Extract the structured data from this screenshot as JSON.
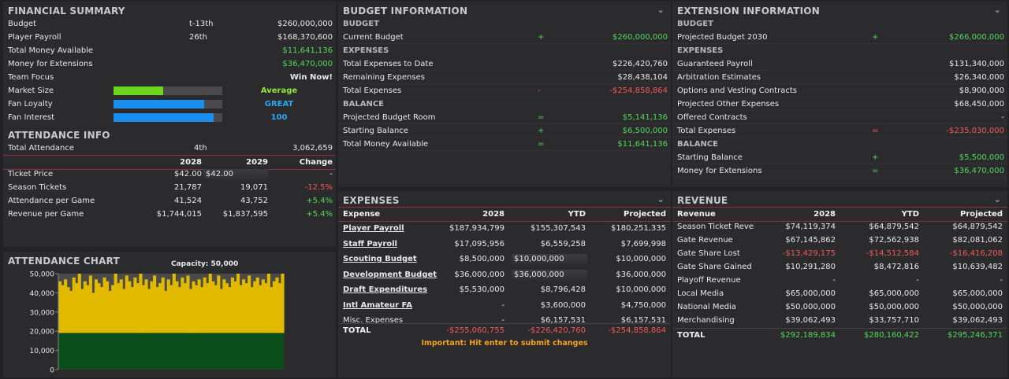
{
  "financial": {
    "title": "FINANCIAL SUMMARY",
    "rows": [
      {
        "label": "Budget",
        "mid": "t-13th",
        "value": "$260,000,000"
      },
      {
        "label": "Player Payroll",
        "mid": "26th",
        "value": "$168,370,600"
      },
      {
        "label": "Total Money Available",
        "mid": "",
        "value": "$11,641,136"
      },
      {
        "label": "Money for Extensions",
        "mid": "",
        "value": "$36,470,000"
      },
      {
        "label": "Team Focus",
        "mid": "",
        "value": "Win Now!"
      }
    ],
    "bars": [
      {
        "label": "Market Size",
        "value_text": "Average",
        "fraction": 0.46,
        "color": "#6cd61c"
      },
      {
        "label": "Fan Loyalty",
        "value_text": "GREAT",
        "fraction": 0.83,
        "color": "#1a8ff0"
      },
      {
        "label": "Fan Interest",
        "value_text": "100",
        "fraction": 0.92,
        "color": "#1a8ff0"
      }
    ]
  },
  "attendance": {
    "title": "ATTENDANCE INFO",
    "total_label": "Total Attendance",
    "total_rank": "4th",
    "total_value": "3,062,659",
    "col_2028": "2028",
    "col_2029": "2029",
    "col_change": "Change",
    "ticket_price": {
      "label": "Ticket Price",
      "v2028": "$42.00",
      "v2029": "$42.00",
      "change": "-"
    },
    "rows": [
      {
        "label": "Season Tickets",
        "v2028": "21,787",
        "v2029": "19,071",
        "change": "-12.5%"
      },
      {
        "label": "Attendance per Game",
        "v2028": "41,524",
        "v2029": "43,752",
        "change": "+5.4%"
      },
      {
        "label": "Revenue per Game",
        "v2028": "$1,744,015",
        "v2029": "$1,837,595",
        "change": "+5.4%"
      }
    ]
  },
  "chart": {
    "title": "ATTENDANCE CHART",
    "capacity_label": "Capacity: 50,000",
    "y_ticks": [
      "50,000",
      "40,000",
      "30,000",
      "20,000",
      "10,000",
      "0"
    ],
    "colors": {
      "season": "#0c4d1c",
      "extra": "#e1ba00",
      "empty": "#4a4a4a"
    }
  },
  "chart_data": {
    "type": "bar",
    "title": "ATTENDANCE CHART",
    "ylim": [
      0,
      50000
    ],
    "season_tickets": 19071,
    "capacity": 50000,
    "values": [
      46000,
      44000,
      47000,
      43000,
      41000,
      48000,
      45000,
      50000,
      42000,
      46000,
      44000,
      49000,
      40000,
      47000,
      45000,
      43000,
      48000,
      46000,
      41000,
      44000,
      50000,
      45000,
      47000,
      42000,
      49000,
      46000,
      43000,
      48000,
      45000,
      50000,
      44000,
      47000,
      42000,
      46000,
      49000,
      43000,
      45000,
      48000,
      41000,
      47000,
      44000,
      50000,
      46000,
      43000,
      48000,
      45000,
      49000,
      42000,
      46000,
      44000,
      47000,
      43000,
      48000,
      45000,
      50000,
      46000,
      44000,
      49000,
      42000,
      47000,
      45000,
      43000,
      48000,
      46000,
      50000,
      44000,
      47000,
      45000,
      49000,
      43000,
      46000,
      48000,
      44000,
      47000,
      45000,
      50000,
      43000,
      46000,
      48000,
      45000,
      50000
    ]
  },
  "budget": {
    "title": "BUDGET INFORMATION",
    "sections": [
      {
        "label": "BUDGET",
        "rows": [
          {
            "label": "Current Budget",
            "op": "+",
            "value": "$260,000,000",
            "color": "green"
          }
        ]
      },
      {
        "label": "EXPENSES",
        "rows": [
          {
            "label": "Total Expenses to Date",
            "op": "",
            "value": "$226,420,760",
            "color": ""
          },
          {
            "label": "Remaining Expenses",
            "op": "",
            "value": "$28,438,104",
            "color": ""
          },
          {
            "label": "Total Expenses",
            "op": "-",
            "value": "-$254,858,864",
            "color": "red"
          }
        ]
      },
      {
        "label": "BALANCE",
        "rows": [
          {
            "label": "Projected Budget Room",
            "op": "=",
            "value": "$5,141,136",
            "color": "green"
          },
          {
            "label": "Starting Balance",
            "op": "+",
            "value": "$6,500,000",
            "color": "green"
          },
          {
            "label": "Total Money Available",
            "op": "=",
            "value": "$11,641,136",
            "color": "green"
          }
        ]
      }
    ]
  },
  "extension": {
    "title": "EXTENSION INFORMATION",
    "sections": [
      {
        "label": "BUDGET",
        "rows": [
          {
            "label": "Projected Budget 2030",
            "op": "+",
            "value": "$266,000,000",
            "color": "green"
          }
        ]
      },
      {
        "label": "EXPENSES",
        "rows": [
          {
            "label": "Guaranteed Payroll",
            "op": "",
            "value": "$131,340,000",
            "color": ""
          },
          {
            "label": "Arbitration Estimates",
            "op": "",
            "value": "$26,340,000",
            "color": ""
          },
          {
            "label": "Options and Vesting Contracts",
            "op": "",
            "value": "$8,900,000",
            "color": ""
          },
          {
            "label": "Projected Other Expenses",
            "op": "",
            "value": "$68,450,000",
            "color": ""
          },
          {
            "label": "Offered Contracts",
            "op": "",
            "value": "-",
            "color": ""
          },
          {
            "label": "Total Expenses",
            "op": "=",
            "value": "-$235,030,000",
            "color": "red"
          }
        ]
      },
      {
        "label": "BALANCE",
        "rows": [
          {
            "label": "Starting Balance",
            "op": "+",
            "value": "$5,500,000",
            "color": "green"
          },
          {
            "label": "Money for Extensions",
            "op": "=",
            "value": "$36,470,000",
            "color": "green"
          }
        ]
      }
    ]
  },
  "expenses": {
    "title": "EXPENSES",
    "headers": [
      "Expense",
      "2028",
      "YTD",
      "Projected"
    ],
    "rows": [
      {
        "label": "Player Payroll",
        "link": true,
        "v2028": "$187,934,799",
        "ytd": "$155,307,543",
        "input": false,
        "proj": "$180,251,335"
      },
      {
        "label": "Staff Payroll",
        "link": true,
        "v2028": "$17,095,956",
        "ytd": "$6,559,258",
        "input": false,
        "proj": "$7,699,998"
      },
      {
        "label": "Scouting Budget",
        "link": true,
        "v2028": "$8,500,000",
        "ytd": "$10,000,000",
        "input": true,
        "proj": "$10,000,000"
      },
      {
        "label": "Development Budget",
        "link": true,
        "v2028": "$36,000,000",
        "ytd": "$36,000,000",
        "input": true,
        "proj": "$36,000,000"
      },
      {
        "label": "Draft Expenditures",
        "link": true,
        "v2028": "$5,530,000",
        "ytd": "$8,796,428",
        "input": false,
        "proj": "$10,000,000"
      },
      {
        "label": "Intl Amateur FA",
        "link": true,
        "v2028": "-",
        "ytd": "$3,600,000",
        "input": false,
        "proj": "$4,750,000"
      },
      {
        "label": "Misc. Expenses",
        "link": false,
        "v2028": "-",
        "ytd": "$6,157,531",
        "input": false,
        "proj": "$6,157,531"
      }
    ],
    "total": {
      "label": "TOTAL",
      "v2028": "-$255,060,755",
      "ytd": "-$226,420,760",
      "proj": "-$254,858,864"
    },
    "note": "Important: Hit enter to submit changes"
  },
  "revenue": {
    "title": "REVENUE",
    "headers": [
      "Revenue",
      "2028",
      "YTD",
      "Projected"
    ],
    "rows": [
      {
        "label": "Season Ticket Revenu",
        "v2028": "$74,119,374",
        "ytd": "$64,879,542",
        "proj": "$64,879,542",
        "color": ""
      },
      {
        "label": "Gate Revenue",
        "v2028": "$67,145,862",
        "ytd": "$72,562,938",
        "proj": "$82,081,062",
        "color": ""
      },
      {
        "label": "Gate Share Lost",
        "v2028": "-$13,429,175",
        "ytd": "-$14,512,584",
        "proj": "-$16,416,208",
        "color": "red"
      },
      {
        "label": "Gate Share Gained",
        "v2028": "$10,291,280",
        "ytd": "$8,472,816",
        "proj": "$10,639,482",
        "color": ""
      },
      {
        "label": "Playoff Revenue",
        "v2028": "-",
        "ytd": "-",
        "proj": "-",
        "color": ""
      },
      {
        "label": "Local Media",
        "v2028": "$65,000,000",
        "ytd": "$65,000,000",
        "proj": "$65,000,000",
        "color": ""
      },
      {
        "label": "National Media",
        "v2028": "$50,000,000",
        "ytd": "$50,000,000",
        "proj": "$50,000,000",
        "color": ""
      },
      {
        "label": "Merchandising",
        "v2028": "$39,062,493",
        "ytd": "$33,757,710",
        "proj": "$39,062,493",
        "color": ""
      }
    ],
    "total": {
      "label": "TOTAL",
      "v2028": "$292,189,834",
      "ytd": "$280,160,422",
      "proj": "$295,246,371"
    }
  }
}
